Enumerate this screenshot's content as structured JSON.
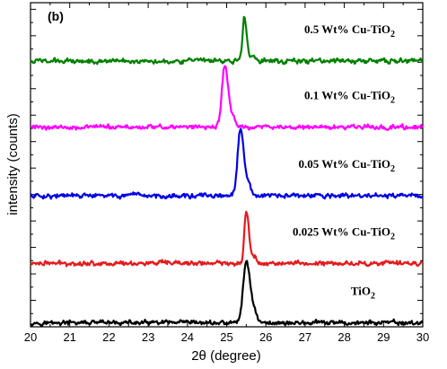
{
  "chart_data": {
    "type": "line",
    "panel_label": "(b)",
    "xlabel": "2θ (degree)",
    "ylabel": "intensity (counts)",
    "xlim": [
      20,
      30
    ],
    "x_ticks": [
      "20",
      "21",
      "22",
      "23",
      "24",
      "25",
      "26",
      "27",
      "28",
      "29",
      "30"
    ],
    "y_tick_labels_shown": false,
    "grid": false,
    "legend": "inline labels beside each curve",
    "series": [
      {
        "name": "TiO2",
        "label_main": "TiO",
        "label_sub": "2",
        "color": "#000000",
        "peak_2theta": 25.5,
        "baseline": 0.3,
        "peak_height": 4.6,
        "peak_width": 0.08
      },
      {
        "name": "0.025 Wt% Cu-TiO2",
        "label_main": "0.025 Wt% Cu-TiO",
        "label_sub": "2",
        "color": "#e41a1c",
        "peak_2theta": 25.5,
        "baseline": 4.8,
        "peak_height": 4.0,
        "peak_width": 0.05
      },
      {
        "name": "0.05 Wt% Cu-TiO2",
        "label_main": "0.05 Wt% Cu-TiO",
        "label_sub": "2",
        "color": "#0000e6",
        "peak_2theta": 25.35,
        "baseline": 9.9,
        "peak_height": 5.0,
        "peak_width": 0.07
      },
      {
        "name": "0.1 Wt% Cu-TiO2",
        "label_main": "0.1 Wt% Cu-TiO",
        "label_sub": "2",
        "color": "#ff00ff",
        "peak_2theta": 24.95,
        "baseline": 15.1,
        "peak_height": 4.6,
        "peak_width": 0.07
      },
      {
        "name": "0.5 Wt% Cu-TiO2",
        "label_main": "0.5 Wt% Cu-TiO",
        "label_sub": "2",
        "color": "#008000",
        "peak_2theta": 25.45,
        "baseline": 20.1,
        "peak_height": 3.3,
        "peak_width": 0.045
      }
    ]
  }
}
